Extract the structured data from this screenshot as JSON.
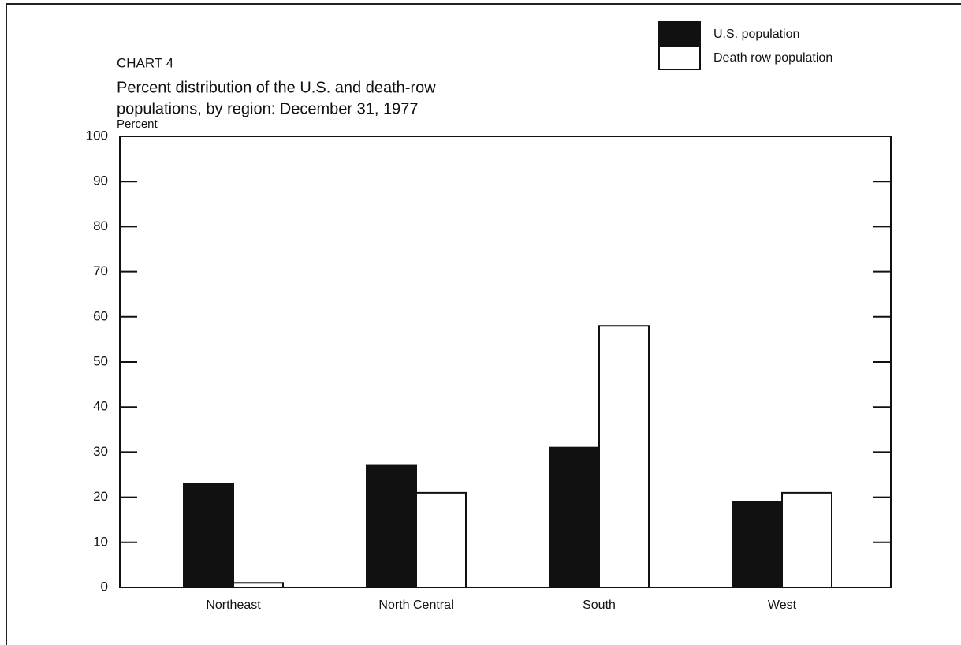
{
  "chart_data": {
    "type": "bar",
    "chart_label": "CHART 4",
    "title": [
      "Percent distribution of the U.S. and death-row",
      "populations, by region:  December 31, 1977"
    ],
    "y_label": "Percent",
    "categories": [
      "Northeast",
      "North Central",
      "South",
      "West"
    ],
    "series": [
      {
        "name": "U.S. population",
        "color": "#111111",
        "values": [
          23,
          27,
          31,
          19
        ]
      },
      {
        "name": "Death row population",
        "color": "#ffffff",
        "values": [
          1,
          21,
          58,
          21
        ]
      }
    ],
    "ylim": [
      0,
      100
    ],
    "yticks": [
      0,
      10,
      20,
      30,
      40,
      50,
      60,
      70,
      80,
      90,
      100
    ],
    "legend": "upper right"
  }
}
